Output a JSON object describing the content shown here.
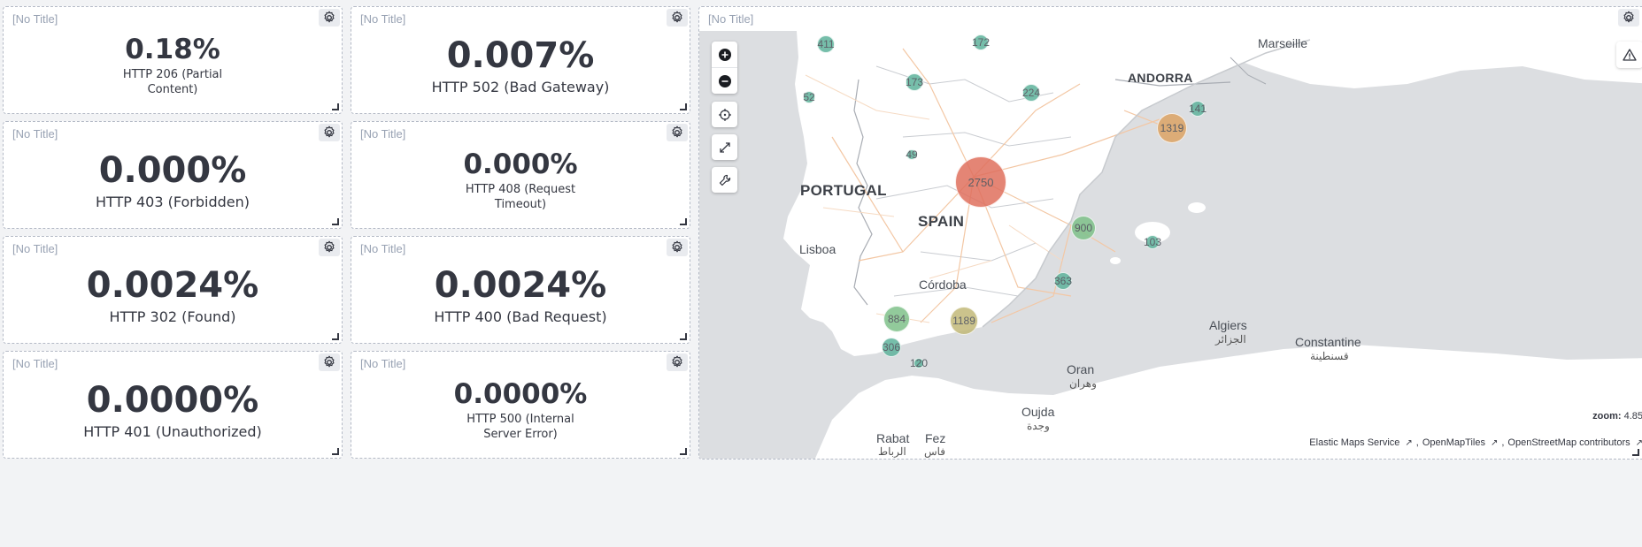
{
  "metrics": [
    {
      "title": "[No Title]",
      "value": "0.18%",
      "label": "HTTP 206 (Partial Content)"
    },
    {
      "title": "[No Title]",
      "value": "0.007%",
      "label": "HTTP 502 (Bad Gateway)"
    },
    {
      "title": "[No Title]",
      "value": "0.000%",
      "label": "HTTP 403 (Forbidden)"
    },
    {
      "title": "[No Title]",
      "value": "0.000%",
      "label": "HTTP 408 (Request Timeout)"
    },
    {
      "title": "[No Title]",
      "value": "0.0024%",
      "label": "HTTP 302 (Found)"
    },
    {
      "title": "[No Title]",
      "value": "0.0024%",
      "label": "HTTP 400 (Bad Request)"
    },
    {
      "title": "[No Title]",
      "value": "0.0000%",
      "label": "HTTP 401 (Unauthorized)"
    },
    {
      "title": "[No Title]",
      "value": "0.0000%",
      "label": "HTTP 500 (Internal Server Error)"
    }
  ],
  "map": {
    "title": "[No Title]",
    "places": {
      "portugal": "PORTUGAL",
      "spain": "SPAIN",
      "andorra": "ANDORRA",
      "lisboa": "Lisboa",
      "cordoba": "Córdoba",
      "marseille": "Marseille",
      "algiers": "Algiers",
      "algiers_ar": "الجزائر",
      "constantine": "Constantine",
      "constantine_ar": "قسنطينة",
      "oran": "Oran",
      "oran_ar": "وهران",
      "oujda": "Oujda",
      "oujda_ar": "وجدة",
      "rabat": "Rabat",
      "rabat_ar": "الرباط",
      "fez": "Fez",
      "fez_ar": "فاس"
    },
    "clusters": [
      {
        "count": "411",
        "color": "#5fb39c"
      },
      {
        "count": "172",
        "color": "#5fb39c"
      },
      {
        "count": "173",
        "color": "#5fb39c"
      },
      {
        "count": "52",
        "color": "#5fb39c"
      },
      {
        "count": "224",
        "color": "#5fb39c"
      },
      {
        "count": "141",
        "color": "#5fb39c"
      },
      {
        "count": "1319",
        "color": "#dca465"
      },
      {
        "count": "49",
        "color": "#5fb39c"
      },
      {
        "count": "2750",
        "color": "#e0705e"
      },
      {
        "count": "900",
        "color": "#7fc18a"
      },
      {
        "count": "103",
        "color": "#5fb39c"
      },
      {
        "count": "363",
        "color": "#5fb39c"
      },
      {
        "count": "884",
        "color": "#7fc18a"
      },
      {
        "count": "1189",
        "color": "#c2b978"
      },
      {
        "count": "306",
        "color": "#5fb39c"
      },
      {
        "count": "120",
        "color": "#5fb39c"
      }
    ],
    "zoom_label": "zoom:",
    "zoom_value": "4.85",
    "attribution": [
      "Elastic Maps Service",
      "OpenMapTiles",
      "OpenStreetMap contributors"
    ]
  },
  "icons": {
    "gear": "gear-icon",
    "plus": "plus-icon",
    "minus": "minus-icon",
    "locate": "crosshair-icon",
    "fullscreen": "expand-icon",
    "tools": "wrench-icon",
    "warning": "warning-icon",
    "external": "external-link-icon"
  }
}
